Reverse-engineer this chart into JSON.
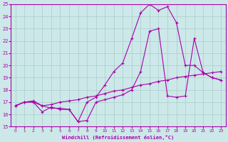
{
  "xlabel": "Windchill (Refroidissement éolien,°C)",
  "bg_color": "#cce8e8",
  "grid_color": "#aacccc",
  "line_color": "#aa00aa",
  "xlim": [
    -0.5,
    23.5
  ],
  "ylim": [
    15,
    25
  ],
  "xticks": [
    0,
    1,
    2,
    3,
    4,
    5,
    6,
    7,
    8,
    9,
    10,
    11,
    12,
    13,
    14,
    15,
    16,
    17,
    18,
    19,
    20,
    21,
    22,
    23
  ],
  "yticks": [
    15,
    16,
    17,
    18,
    19,
    20,
    21,
    22,
    23,
    24,
    25
  ],
  "series1_x": [
    0,
    1,
    2,
    3,
    4,
    5,
    6,
    7,
    8,
    9,
    10,
    11,
    12,
    13,
    14,
    15,
    16,
    17,
    18,
    19,
    20,
    21,
    22,
    23
  ],
  "series1_y": [
    16.7,
    17.0,
    17.0,
    16.2,
    16.6,
    16.4,
    16.4,
    15.4,
    15.5,
    17.0,
    17.2,
    17.4,
    17.6,
    18.0,
    19.5,
    22.8,
    23.0,
    17.5,
    17.4,
    17.5,
    22.2,
    19.4,
    19.0,
    18.8
  ],
  "series2_x": [
    0,
    1,
    2,
    3,
    4,
    5,
    6,
    7,
    8,
    9,
    10,
    11,
    12,
    13,
    14,
    15,
    16,
    17,
    18,
    19,
    20,
    21,
    22,
    23
  ],
  "series2_y": [
    16.7,
    17.0,
    17.1,
    16.7,
    16.8,
    17.0,
    17.1,
    17.2,
    17.4,
    17.5,
    17.7,
    17.9,
    18.0,
    18.2,
    18.4,
    18.5,
    18.7,
    18.8,
    19.0,
    19.1,
    19.2,
    19.3,
    19.4,
    19.5
  ],
  "series3_x": [
    0,
    1,
    2,
    3,
    4,
    5,
    6,
    7,
    8,
    9,
    10,
    11,
    12,
    13,
    14,
    15,
    16,
    17,
    18,
    19,
    20,
    21,
    22,
    23
  ],
  "series3_y": [
    16.7,
    17.0,
    17.0,
    16.7,
    16.5,
    16.5,
    16.4,
    15.4,
    17.0,
    17.4,
    18.4,
    19.5,
    20.2,
    22.2,
    24.3,
    25.0,
    24.5,
    24.8,
    23.5,
    20.0,
    20.0,
    19.4,
    19.0,
    18.8
  ]
}
